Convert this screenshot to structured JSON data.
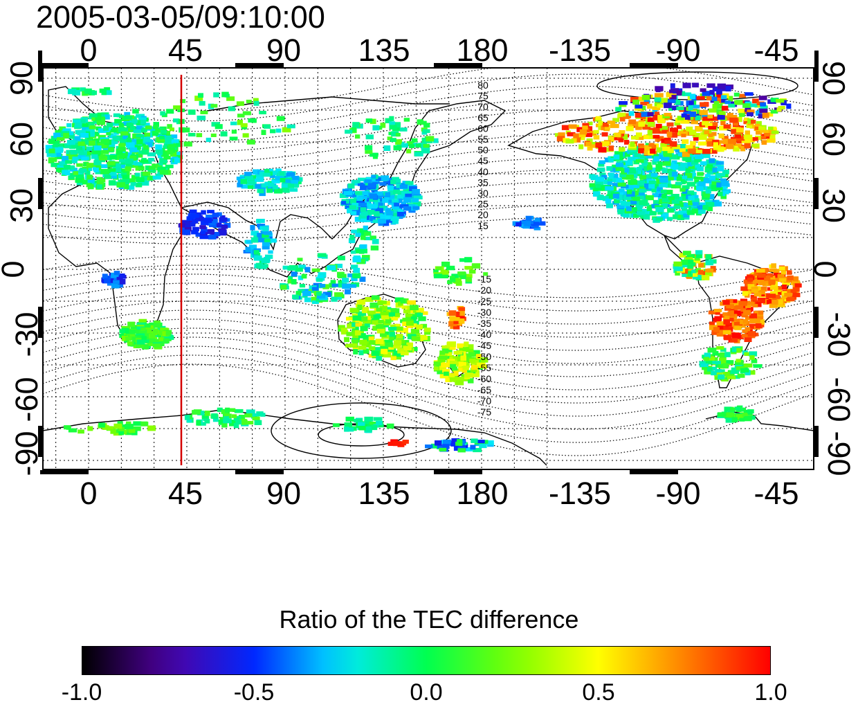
{
  "title": "2005-03-05/09:10:00",
  "lon_ticks": [
    "0",
    "45",
    "90",
    "135",
    "180",
    "-135",
    "-90",
    "-45"
  ],
  "lat_ticks": [
    "90",
    "60",
    "30",
    "0",
    "-30",
    "-60",
    "-90"
  ],
  "contour_labels_north": [
    "80",
    "75",
    "70",
    "65",
    "60",
    "55",
    "50",
    "45",
    "40",
    "35",
    "30",
    "25",
    "20",
    "15"
  ],
  "contour_labels_south": [
    "-15",
    "-20",
    "-25",
    "-30",
    "-35",
    "-40",
    "-45",
    "-50",
    "-55",
    "-60",
    "-65",
    "-70",
    "-75"
  ],
  "colorbar": {
    "title": "Ratio of the TEC difference",
    "ticks": [
      "-1.0",
      "-0.5",
      "0.0",
      "0.5",
      "1.0"
    ],
    "range": [
      -1.0,
      1.0
    ]
  },
  "marker_longitude": 45,
  "colors": {
    "marker": "#d40000"
  }
}
